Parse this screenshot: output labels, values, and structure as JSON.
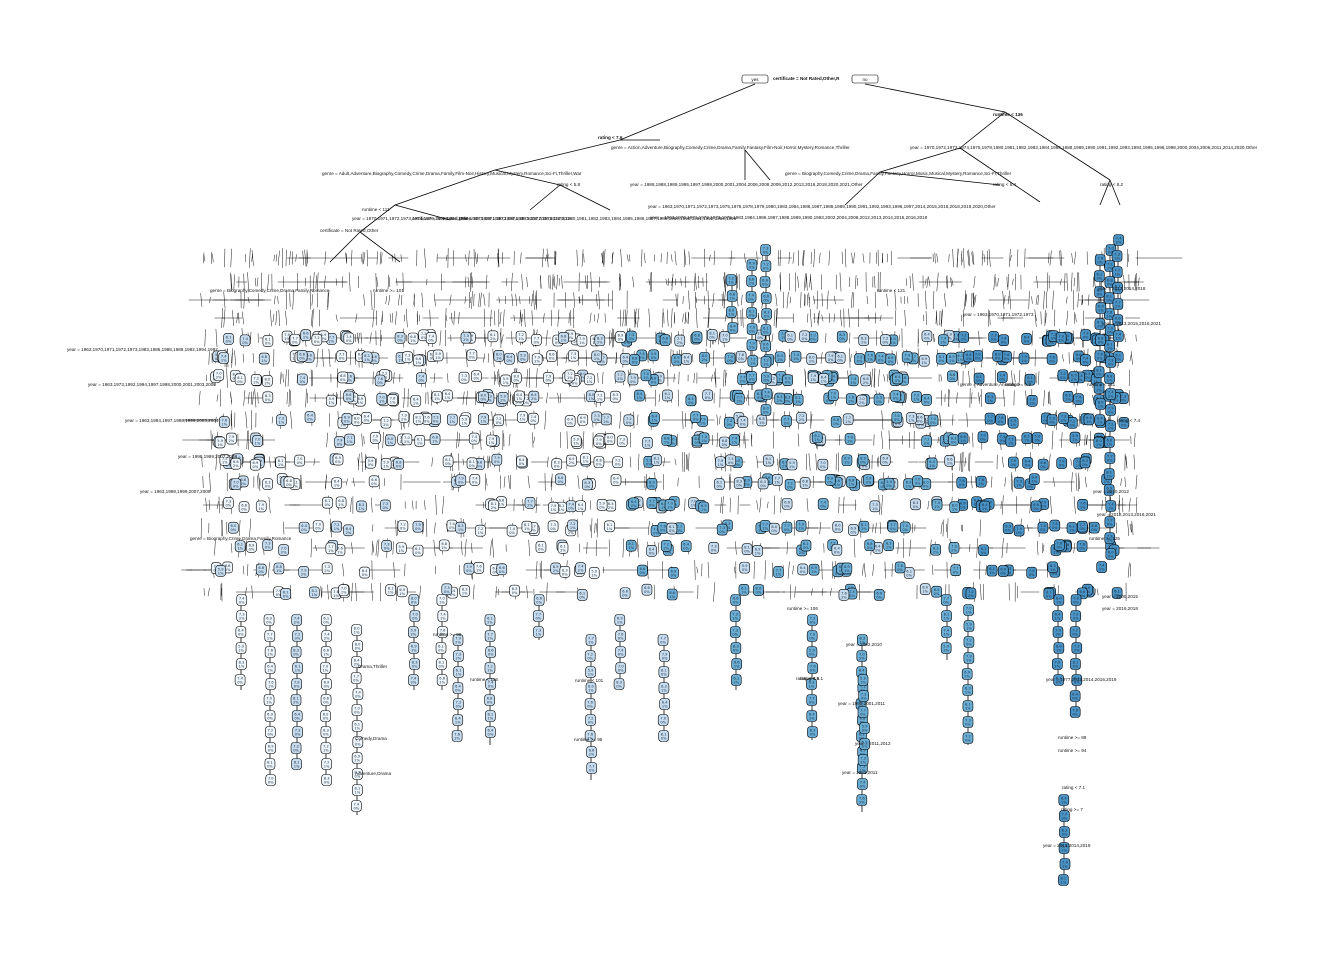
{
  "tree": {
    "root": {
      "split": "certificate = Not Rated,Other,R",
      "left_tag": "yes",
      "right_tag": "no"
    },
    "labels": [
      "runtime < 136",
      "rating < 7.6",
      "genre = Action,Adventure,Biography,Comedy,Crime,Drama,Family,Fantasy,Film-Noir,Horror,Mystery,Romance,Thriller",
      "year = 1970,1972,1973,1974,1975,1978,1980,1981,1982,1983,1984,1986,1988,1989,1990,1991,1992,1993,1994,1995,1996,1998,2000,2004,2006,2011,2014,2020,Other",
      "genre = Adult,Adventure,Biography,Comedy,Crime,Drama,Family,Film-Noir,History,Musical,Mystery,Romance,Sci-Fi,Thriller,War",
      "genre = Biography,Comedy,Crime,Drama,Family,Fantasy,Horror,Music,Musical,Mystery,Romance,Sci-Fi,Thriller",
      "rating < 5.8",
      "rating < 6.4",
      "rating < 8.2",
      "year = 1986,1988,1989,1995,1997,1998,2000,2001,2004,2006,2008,2009,2012,2013,2016,2018,2020,2021,Other",
      "runtime < 111",
      "certificate = Not Rated,Other",
      "genre = Biography,Comedy,Crime,Drama,Family,Romance",
      "runtime >= 101",
      "rating < 6.1",
      "runtime < 116",
      "runtime >= 95",
      "runtime < 101",
      "runtime >= 89",
      "runtime >= 94",
      "rating < 7.1",
      "rating >= 7",
      "year = 2013,2014,2019",
      "year = 1977,2012,2014,2016,2019",
      "year = 1962,1970,1971,1972,1973,1983,1986,1988,1989,1992,1994,1997",
      "year = 1963,1973,1992,1994,1997,1998,2000,2001,2003,2008",
      "year = 1963,1994,1997,1998,1999,2003,2004",
      "year = 1998,1999,2007,2008",
      "year = 1963,1998,1999,2007,2009",
      "genre = Biography,Crime,Drama,Family,Romance",
      "runtime < 121",
      "runtime >= 106",
      "year = 1963,1970,1971,1972,1973",
      "year = 2002,2010",
      "year = 2011,2012",
      "year = 2010,2012",
      "year = 1962,2011",
      "year = 1998,2001,2011",
      "genre = Adventure,Animation",
      "rating >= 6.3",
      "runtime >= 125",
      "runtime < 141",
      "year = 2012,2013,2016,2021",
      "year = 2012,2014,2018",
      "year = 2000,2015",
      "year = 2016,2018",
      "year = 2013,2015,2016,2021",
      "runtime >= 99",
      "rating < 6.5",
      "rating < 7.4",
      "Comedy,Drama",
      "Adventure,Drama",
      "Drama,Thriller",
      "year = 1963,1970,1971,1972,1973,1975,1976,1978,1979,1980,1983,1984,1986,1987,1988,1989,1990,1991,1992,1993,1996,1997,2014,2015,2016,2018,2019,2020,Other",
      "year = 1963,1970,1971,1972,1973,1975,1983,1984,1986,1987,1988,1989,1990,1993,2002,2004,2008,2012,2013,2014,2015,2016,2018",
      "year = 1970,1971,1972,1973,1974,1979,1982,1984,1986,1987,1989,1990,1993,1995,2003,2004,2012,2014",
      "certificate = Not Rated,Other",
      "year = 1970,1971,1972,1974,1975,1977,1978,1979,1980,1981,1982,1983,1984,1985,1986,1987,1988,1989,1990,1991,1992,1994,1996"
    ],
    "leaf_values": [
      "7.2",
      "6.8",
      "7.6",
      "6.4",
      "8.0",
      "7.9",
      "6.9",
      "7.4",
      "6.1",
      "7.7",
      "8.3",
      "6.6",
      "7.0",
      "5.9",
      "8.1",
      "7.3"
    ],
    "leaf_pcts": [
      "0%",
      "1%",
      "0%",
      "0%",
      "2%",
      "1%",
      "0%",
      "1%"
    ],
    "colors": {
      "low": "#eff6fc",
      "mid": "#c6dcef",
      "high": "#6aaed6",
      "max": "#4a94c7"
    }
  }
}
